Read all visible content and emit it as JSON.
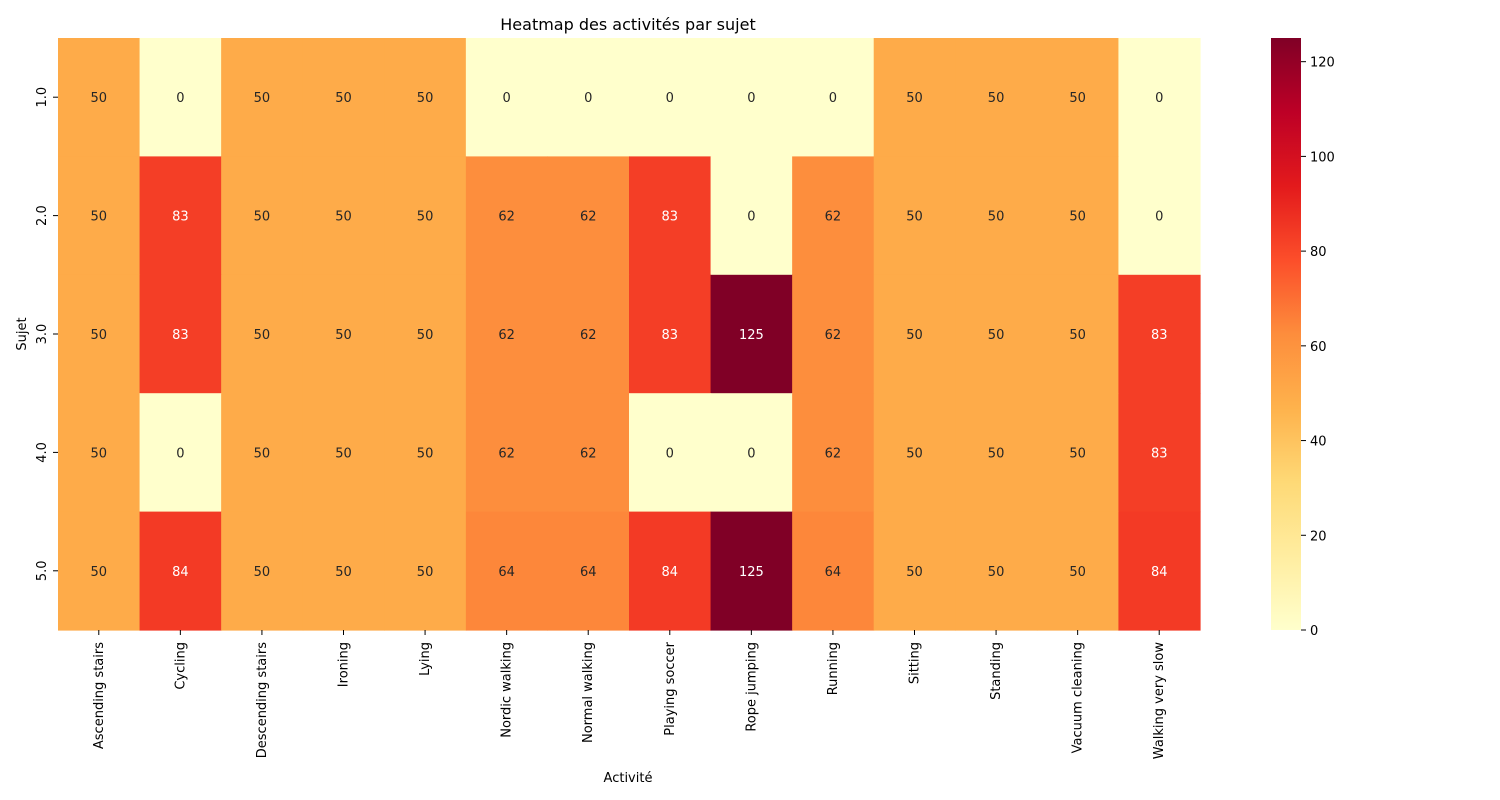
{
  "chart_data": {
    "type": "heatmap",
    "title": "Heatmap des activités par sujet",
    "xlabel": "Activité",
    "ylabel": "Sujet",
    "colormap": "YlOrRd",
    "vmin": 0,
    "vmax": 125,
    "colorbar_ticks": [
      0,
      20,
      40,
      60,
      80,
      100,
      120
    ],
    "x_categories": [
      "Ascending stairs",
      "Cycling",
      "Descending stairs",
      "Ironing",
      "Lying",
      "Nordic walking",
      "Normal walking",
      "Playing soccer",
      "Rope jumping",
      "Running",
      "Sitting",
      "Standing",
      "Vacuum cleaning",
      "Walking very slow"
    ],
    "y_categories": [
      "1.0",
      "2.0",
      "3.0",
      "4.0",
      "5.0"
    ],
    "values": [
      [
        50,
        0,
        50,
        50,
        50,
        0,
        0,
        0,
        0,
        0,
        50,
        50,
        50,
        0
      ],
      [
        50,
        83,
        50,
        50,
        50,
        62,
        62,
        83,
        0,
        62,
        50,
        50,
        50,
        0
      ],
      [
        50,
        83,
        50,
        50,
        50,
        62,
        62,
        83,
        125,
        62,
        50,
        50,
        50,
        83
      ],
      [
        50,
        0,
        50,
        50,
        50,
        62,
        62,
        0,
        0,
        62,
        50,
        50,
        50,
        83
      ],
      [
        50,
        84,
        50,
        50,
        50,
        64,
        64,
        84,
        125,
        64,
        50,
        50,
        50,
        84
      ]
    ]
  }
}
